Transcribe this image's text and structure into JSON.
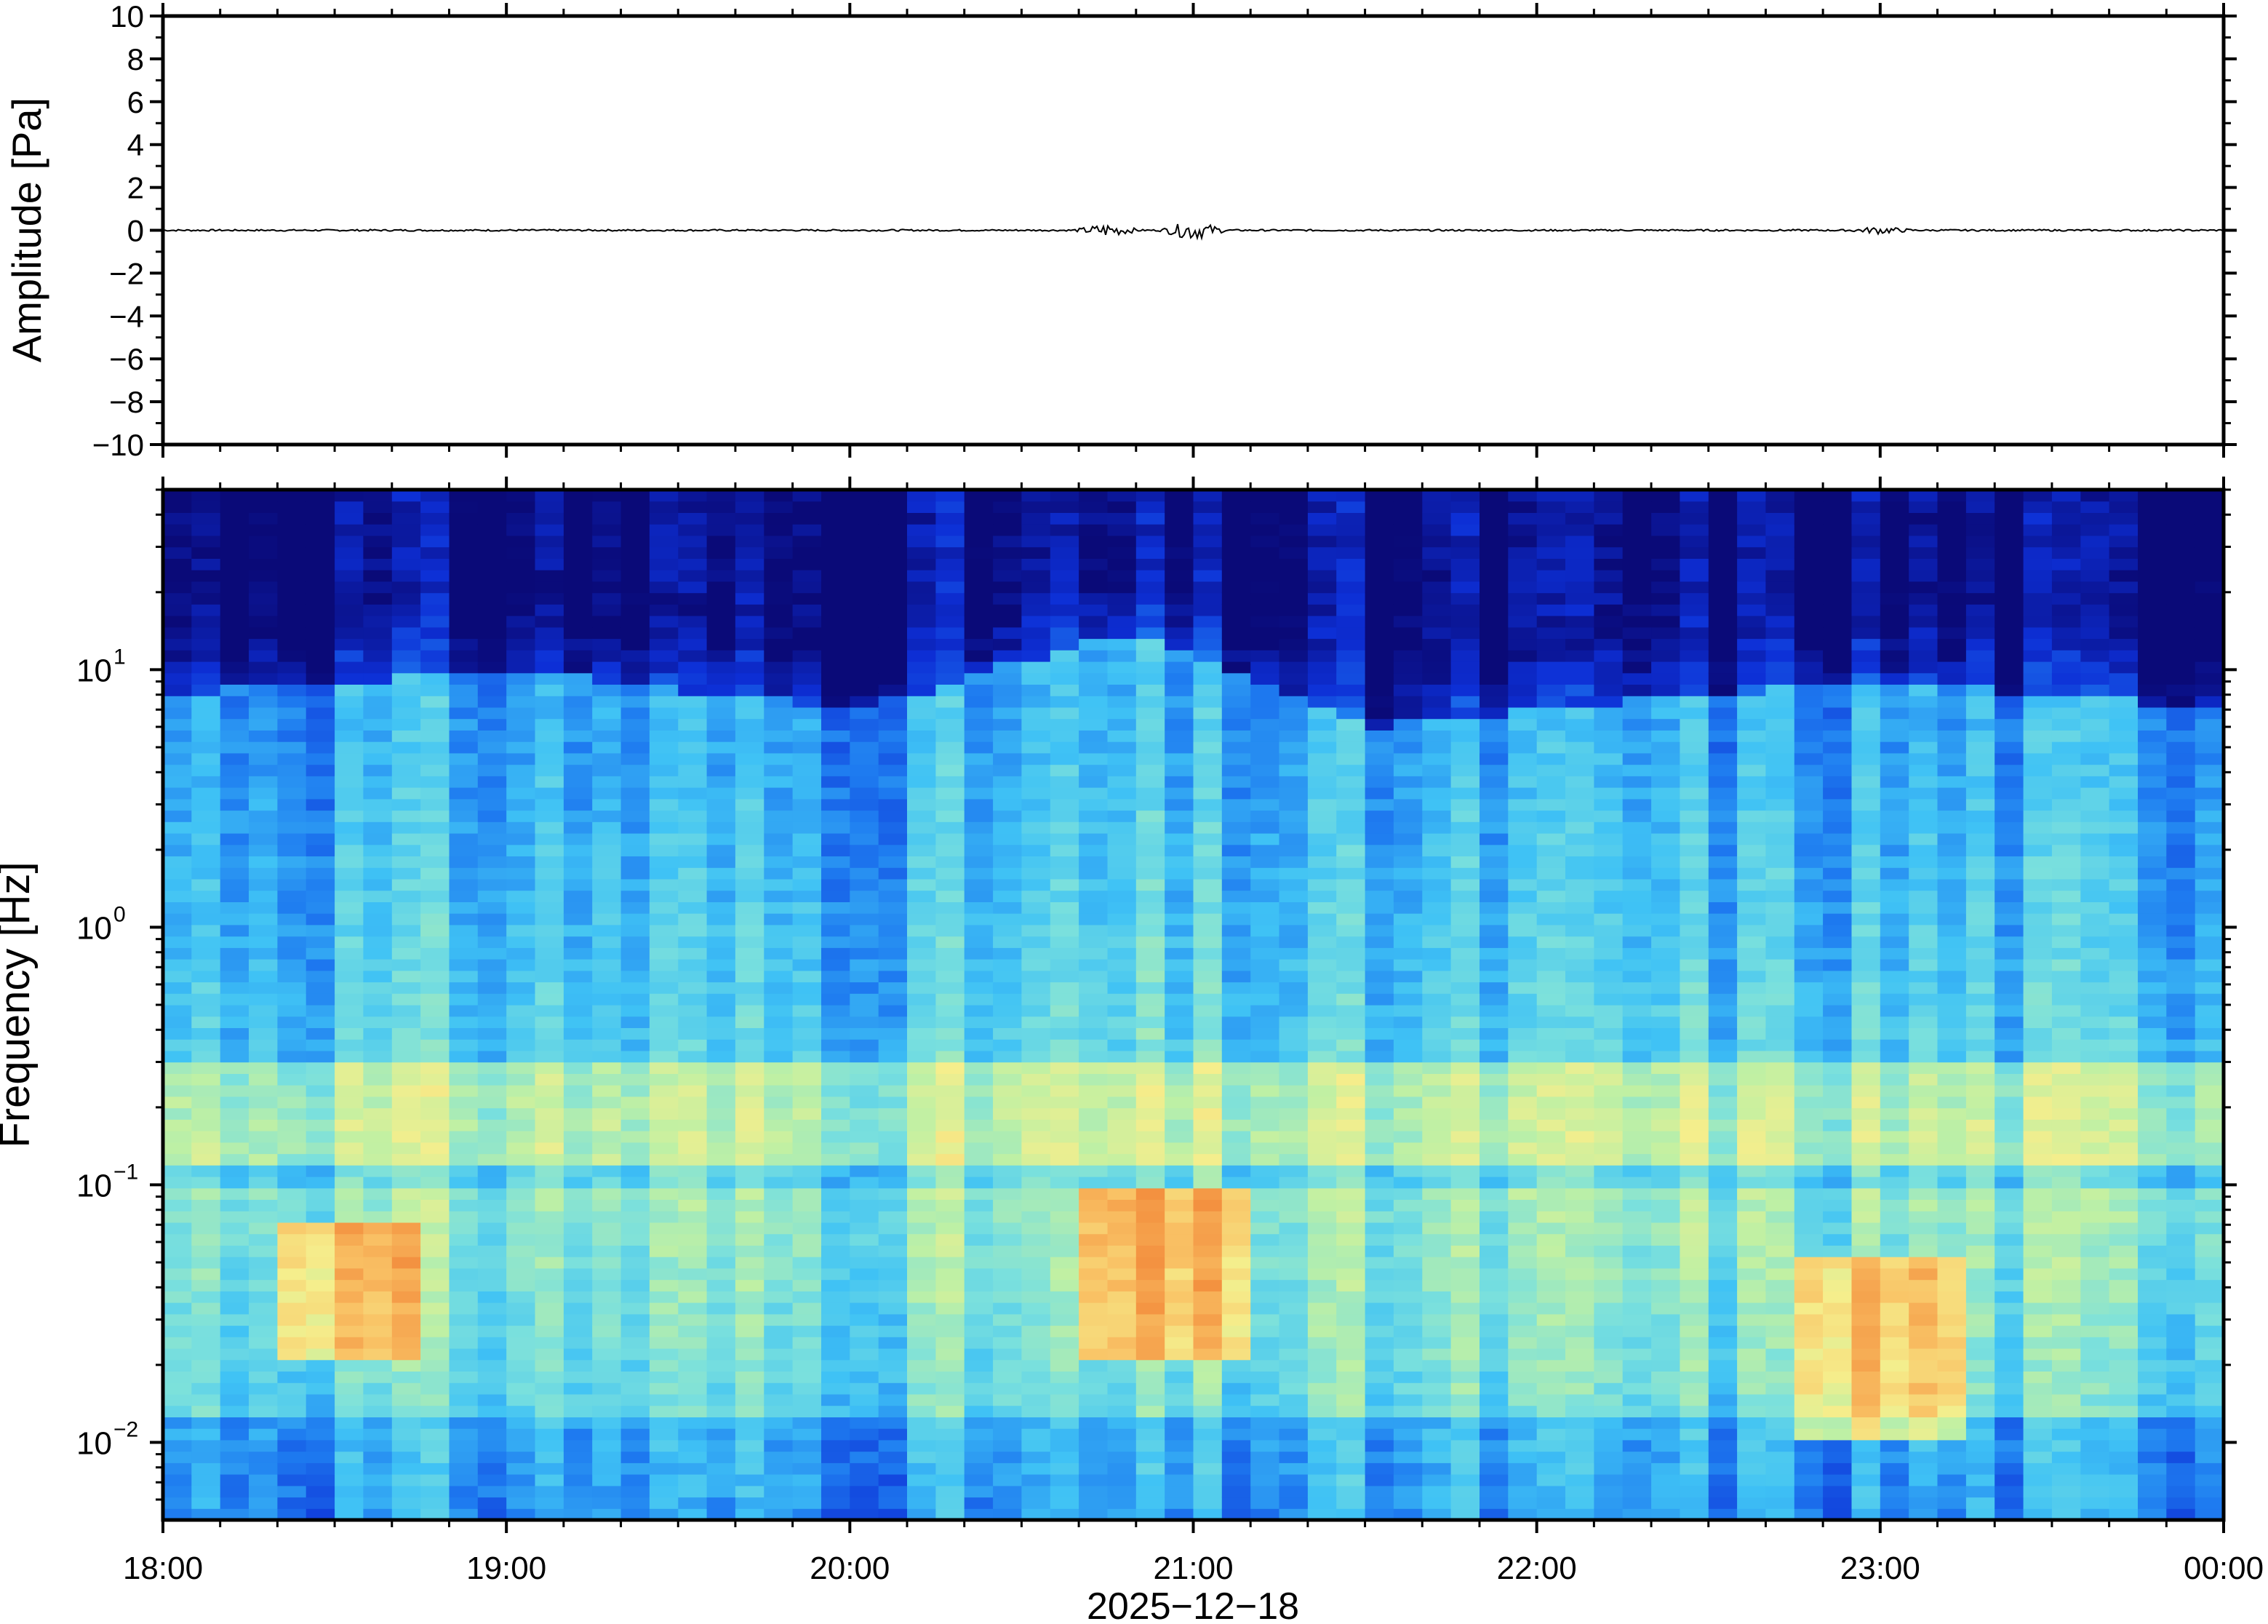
{
  "chart_data": [
    {
      "type": "line",
      "panel": "waveform",
      "ylabel": "Amplitude [Pa]",
      "ylim": [
        -10,
        10
      ],
      "yticks": [
        10,
        8,
        6,
        4,
        2,
        0,
        -2,
        -4,
        -6,
        -8,
        -10
      ],
      "ytick_labels": [
        "10",
        "8",
        "6",
        "4",
        "2",
        "0",
        "−2",
        "−4",
        "−6",
        "−8",
        "−10"
      ],
      "line_color": "#000000",
      "series": [
        {
          "x": [
            "18:00",
            "18:30",
            "19:00",
            "19:30",
            "20:00",
            "20:30",
            "20:45",
            "21:00",
            "21:15",
            "21:30",
            "22:00",
            "22:30",
            "23:00",
            "23:15",
            "23:30",
            "00:00"
          ],
          "values": [
            0,
            0,
            0,
            0,
            0,
            0,
            0.1,
            0.15,
            0,
            0,
            0,
            0,
            0.05,
            0,
            0,
            0
          ]
        }
      ]
    },
    {
      "type": "heatmap",
      "panel": "spectrogram",
      "ylabel": "Frequency [Hz]",
      "yscale": "log",
      "ylim": [
        0.005,
        50
      ],
      "yticks": [
        {
          "base": "10",
          "exp": "1"
        },
        {
          "base": "10",
          "exp": "0"
        },
        {
          "base": "10",
          "exp": "−1"
        },
        {
          "base": "10",
          "exp": "−2"
        }
      ],
      "colormap": [
        "#0a0a78",
        "#0d2fd6",
        "#1e7bf0",
        "#3fc2f5",
        "#7ae0dd",
        "#bff0a4",
        "#f5ee8c",
        "#f9c265",
        "#f39140"
      ],
      "power_by_hour": [
        {
          "time": "18:00",
          "noise_ceiling_hz": 8
        },
        {
          "time": "19:00",
          "noise_ceiling_hz": 10
        },
        {
          "time": "20:00",
          "noise_ceiling_hz": 7
        },
        {
          "time": "20:50",
          "noise_ceiling_hz": 14
        },
        {
          "time": "21:30",
          "noise_ceiling_hz": 6
        },
        {
          "time": "22:30",
          "noise_ceiling_hz": 8
        },
        {
          "time": "23:00",
          "noise_ceiling_hz": 9
        },
        {
          "time": "00:00",
          "noise_ceiling_hz": 7
        }
      ],
      "hotspots": [
        {
          "time_start": "18:25",
          "time_end": "18:40",
          "fmin_hz": 0.02,
          "fmax_hz": 0.07
        },
        {
          "time_start": "20:45",
          "time_end": "21:05",
          "fmin_hz": 0.02,
          "fmax_hz": 0.1
        },
        {
          "time_start": "22:50",
          "time_end": "23:10",
          "fmin_hz": 0.01,
          "fmax_hz": 0.05
        }
      ],
      "microseism_band_hz": [
        0.12,
        0.3
      ]
    }
  ],
  "xaxis": {
    "ticks": [
      "18:00",
      "19:00",
      "20:00",
      "21:00",
      "22:00",
      "23:00",
      "00:00"
    ],
    "label": "2025−12−18"
  }
}
